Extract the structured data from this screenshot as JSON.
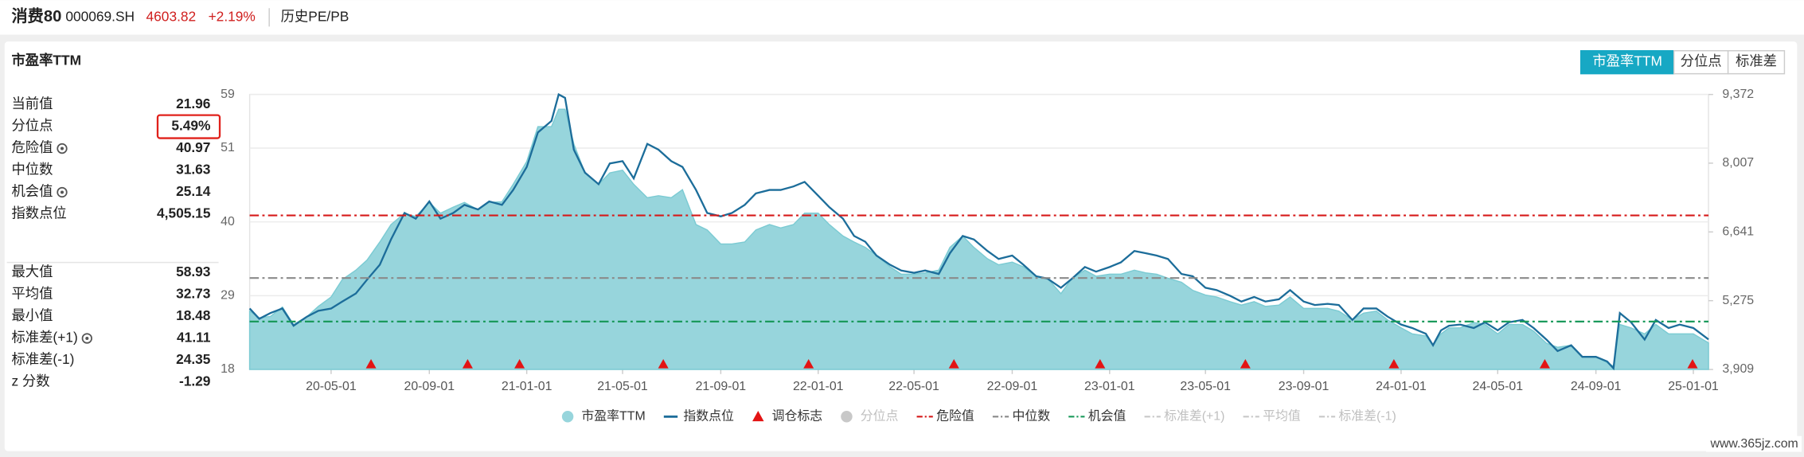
{
  "header": {
    "name": "消费80",
    "code": "000069.SH",
    "price": "4603.82",
    "change": "+2.19%",
    "tab": "历史PE/PB"
  },
  "card": {
    "title": "市盈率TTM",
    "tabs": [
      "市盈率TTM",
      "分位点",
      "标准差"
    ],
    "active_tab": 0
  },
  "stats": [
    [
      {
        "label": "当前值",
        "value": "21.96"
      },
      {
        "label": "分位点",
        "value": "5.49%",
        "highlight": true
      },
      {
        "label": "危险值",
        "value": "40.97",
        "settings": true
      },
      {
        "label": "中位数",
        "value": "31.63"
      },
      {
        "label": "机会值",
        "value": "25.14",
        "settings": true
      },
      {
        "label": "指数点位",
        "value": "4,505.15"
      }
    ],
    [
      {
        "label": "最大值",
        "value": "58.93"
      },
      {
        "label": "平均值",
        "value": "32.73"
      },
      {
        "label": "最小值",
        "value": "18.48"
      },
      {
        "label": "标准差(+1)",
        "value": "41.11",
        "settings": true
      },
      {
        "label": "标准差(-1)",
        "value": "24.35"
      },
      {
        "label": "z 分数",
        "value": "-1.29"
      }
    ]
  ],
  "chart_data": {
    "type": "combo",
    "x": [
      "20-01-20",
      "20-02-01",
      "20-02-15",
      "20-03-01",
      "20-03-15",
      "20-04-01",
      "20-04-15",
      "20-05-01",
      "20-05-15",
      "20-06-01",
      "20-06-15",
      "20-07-01",
      "20-07-15",
      "20-08-01",
      "20-08-15",
      "20-09-01",
      "20-09-15",
      "20-10-01",
      "20-10-15",
      "20-11-01",
      "20-11-15",
      "20-12-01",
      "20-12-15",
      "21-01-01",
      "21-01-15",
      "21-02-01",
      "21-02-10",
      "21-02-18",
      "21-03-01",
      "21-03-15",
      "21-04-01",
      "21-04-15",
      "21-05-01",
      "21-05-15",
      "21-06-01",
      "21-06-15",
      "21-07-01",
      "21-07-15",
      "21-08-01",
      "21-08-15",
      "21-09-01",
      "21-09-15",
      "21-10-01",
      "21-10-15",
      "21-11-01",
      "21-11-15",
      "21-12-01",
      "21-12-15",
      "22-01-01",
      "22-01-15",
      "22-02-01",
      "22-02-15",
      "22-03-01",
      "22-03-15",
      "22-04-01",
      "22-04-15",
      "22-05-01",
      "22-05-15",
      "22-06-01",
      "22-06-15",
      "22-07-01",
      "22-07-15",
      "22-08-01",
      "22-08-15",
      "22-09-01",
      "22-09-15",
      "22-10-01",
      "22-10-15",
      "22-11-01",
      "22-11-15",
      "22-12-01",
      "22-12-15",
      "23-01-01",
      "23-01-15",
      "23-02-01",
      "23-02-15",
      "23-03-01",
      "23-03-15",
      "23-04-01",
      "23-04-15",
      "23-05-01",
      "23-05-15",
      "23-06-01",
      "23-06-15",
      "23-07-01",
      "23-07-15",
      "23-08-01",
      "23-08-15",
      "23-09-01",
      "23-09-15",
      "23-10-01",
      "23-10-15",
      "23-11-01",
      "23-11-15",
      "23-12-01",
      "23-12-15",
      "24-01-01",
      "24-01-15",
      "24-02-01",
      "24-02-10",
      "24-02-20",
      "24-03-01",
      "24-03-15",
      "24-04-01",
      "24-04-15",
      "24-05-01",
      "24-05-15",
      "24-06-01",
      "24-06-15",
      "24-07-01",
      "24-07-15",
      "24-08-01",
      "24-08-15",
      "24-09-01",
      "24-09-15",
      "24-09-23",
      "24-10-01",
      "24-10-15",
      "24-11-01",
      "24-11-15",
      "24-12-01",
      "24-12-15",
      "25-01-01",
      "25-01-20"
    ],
    "series": [
      {
        "name": "市盈率TTM",
        "kind": "area",
        "color": "#97d5dc",
        "values": [
          26.7,
          25.7,
          25.9,
          27.3,
          24.7,
          25.9,
          27.4,
          28.8,
          31.4,
          32.8,
          34.3,
          37.0,
          39.6,
          41.3,
          40.8,
          42.9,
          41.3,
          42.2,
          42.9,
          41.8,
          42.9,
          43.0,
          45.6,
          49.0,
          54.2,
          54.2,
          56.8,
          56.8,
          51.6,
          47.3,
          45.6,
          47.3,
          47.7,
          45.6,
          43.6,
          43.9,
          43.6,
          44.8,
          39.6,
          38.8,
          36.7,
          36.7,
          37.0,
          38.8,
          39.6,
          39.1,
          39.6,
          41.3,
          41.3,
          39.6,
          37.9,
          37.0,
          36.2,
          35.0,
          33.3,
          32.2,
          32.2,
          32.4,
          32.8,
          36.2,
          37.9,
          36.2,
          34.5,
          33.6,
          34.0,
          33.3,
          31.9,
          31.6,
          29.3,
          31.6,
          32.8,
          31.9,
          32.2,
          32.2,
          32.8,
          32.4,
          32.2,
          31.6,
          31.0,
          29.8,
          29.1,
          28.8,
          28.1,
          27.6,
          28.1,
          27.4,
          27.6,
          28.8,
          27.1,
          27.1,
          27.1,
          26.7,
          25.4,
          26.4,
          26.7,
          25.4,
          24.2,
          23.3,
          23.0,
          21.6,
          23.3,
          24.2,
          24.2,
          25.0,
          24.7,
          23.3,
          24.7,
          24.7,
          23.7,
          21.9,
          21.3,
          21.6,
          19.9,
          19.9,
          19.0,
          18.48,
          24.7,
          24.2,
          23.3,
          24.7,
          23.3,
          23.3,
          23.3,
          21.96
        ]
      },
      {
        "name": "指数点位",
        "kind": "line",
        "axis": "y2",
        "color": "#1c6d9a",
        "values": [
          5120,
          4915,
          5029,
          5120,
          4778,
          4960,
          5075,
          5120,
          5258,
          5418,
          5692,
          5989,
          6492,
          7018,
          6904,
          7247,
          6904,
          7018,
          7178,
          7087,
          7247,
          7178,
          7475,
          7932,
          8618,
          8847,
          9372,
          9304,
          8275,
          7818,
          7589,
          8001,
          8047,
          7704,
          8390,
          8275,
          8047,
          7932,
          7475,
          7018,
          6950,
          7018,
          7178,
          7407,
          7475,
          7475,
          7544,
          7635,
          7361,
          7132,
          6904,
          6561,
          6446,
          6172,
          5989,
          5875,
          5829,
          5875,
          5806,
          6218,
          6561,
          6492,
          6263,
          6104,
          6172,
          5989,
          5761,
          5715,
          5532,
          5715,
          5944,
          5852,
          5944,
          6035,
          6263,
          6218,
          6172,
          6104,
          5806,
          5761,
          5532,
          5486,
          5372,
          5258,
          5349,
          5258,
          5303,
          5486,
          5258,
          5189,
          5212,
          5189,
          4892,
          5120,
          5120,
          4960,
          4801,
          4732,
          4618,
          4389,
          4686,
          4778,
          4801,
          4732,
          4846,
          4686,
          4846,
          4892,
          4732,
          4503,
          4275,
          4389,
          4160,
          4160,
          4069,
          3932,
          5029,
          4846,
          4503,
          4892,
          4732,
          4801,
          4732,
          4505.15
        ]
      }
    ],
    "markers": {
      "name": "调仓标志",
      "color": "#e31414",
      "x": [
        "20-06-20",
        "20-10-19",
        "20-12-23",
        "21-06-21",
        "21-12-20",
        "22-06-20",
        "22-12-20",
        "23-06-20",
        "23-12-23",
        "24-06-29",
        "24-12-31"
      ]
    },
    "percentile": {
      "name": "分位点",
      "color": "#c8c8c8",
      "visible": false
    },
    "ref_lines": [
      {
        "name": "危险值",
        "value": 40.97,
        "color": "#d61a1a",
        "visible": true
      },
      {
        "name": "中位数",
        "value": 31.63,
        "color": "#8a8a8a",
        "visible": true
      },
      {
        "name": "机会值",
        "value": 25.14,
        "color": "#1b9a5c",
        "visible": true
      },
      {
        "name": "标准差(+1)",
        "color": "#c8c8c8",
        "visible": false
      },
      {
        "name": "平均值",
        "color": "#c8c8c8",
        "visible": false
      },
      {
        "name": "标准差(-1)",
        "color": "#c8c8c8",
        "visible": false
      }
    ],
    "xlim": [
      "20-01-20",
      "25-01-20"
    ],
    "xticks": [
      "20-05-01",
      "20-09-01",
      "21-01-01",
      "21-05-01",
      "21-09-01",
      "22-01-01",
      "22-05-01",
      "22-09-01",
      "23-01-01",
      "23-05-01",
      "23-09-01",
      "24-01-01",
      "24-05-01",
      "24-09-01",
      "25-01-01"
    ],
    "ylim": [
      18,
      59
    ],
    "yticks": [
      18,
      29,
      40,
      51,
      59
    ],
    "y2lim": [
      3909,
      9372
    ],
    "y2ticks": [
      {
        "value": 3909,
        "label": "3,909"
      },
      {
        "value": 5275,
        "label": "5,275"
      },
      {
        "value": 6641,
        "label": "6,641"
      },
      {
        "value": 8007,
        "label": "8,007"
      },
      {
        "value": 9372,
        "label": "9,372"
      }
    ],
    "grid": true
  },
  "watermark": "www.365jz.com"
}
